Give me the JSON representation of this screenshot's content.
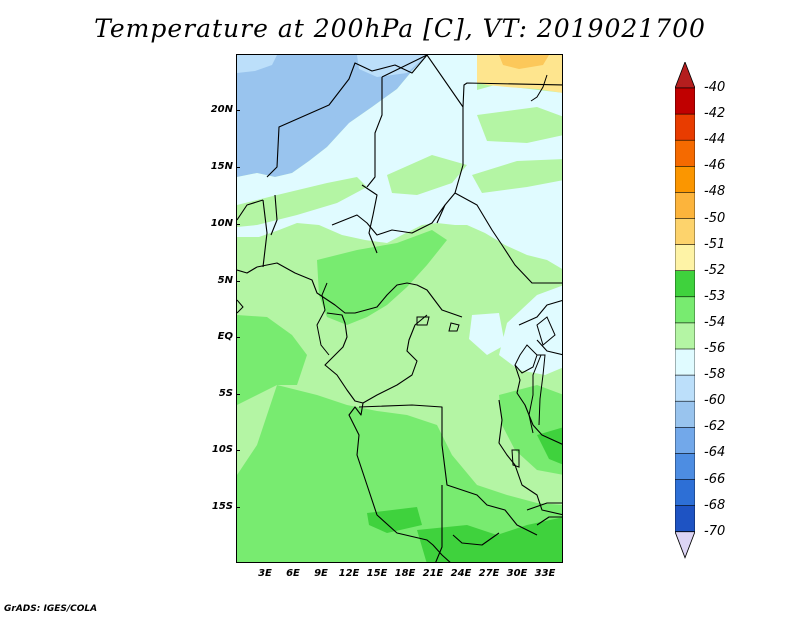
{
  "title": "Temperature at 200hPa [C], VT: 2019021700",
  "credit": "GrADS: IGES/COLA",
  "map": {
    "lat_labels": [
      "20N",
      "15N",
      "10N",
      "5N",
      "EQ",
      "5S",
      "10S",
      "15S"
    ],
    "lon_labels": [
      "3E",
      "6E",
      "9E",
      "12E",
      "15E",
      "18E",
      "21E",
      "24E",
      "27E",
      "30E",
      "33E"
    ],
    "colors": {
      "coldest_blue": "#99c4ee",
      "blue_56": "#bcdffa",
      "pale_cyan_54": "#e0fbff",
      "light_green_53": "#b4f5a4",
      "green_52": "#78eb70",
      "green_51": "#3fd23d",
      "yellow_50": "#fee58e",
      "orange_48": "#fcc85a",
      "border_line": "#000000"
    }
  },
  "chart_data": {
    "type": "heatmap",
    "title": "Temperature at 200hPa [C], VT: 2019021700",
    "variable": "Temperature",
    "level": "200hPa",
    "units": "C",
    "valid_time": "2019021700",
    "x_ticks": [
      "3E",
      "6E",
      "9E",
      "12E",
      "15E",
      "18E",
      "21E",
      "24E",
      "27E",
      "30E",
      "33E"
    ],
    "y_ticks": [
      "20N",
      "15N",
      "10N",
      "5N",
      "EQ",
      "5S",
      "10S",
      "15S"
    ],
    "xlim": [
      0,
      35
    ],
    "ylim": [
      -20,
      25
    ],
    "colorbar": {
      "labels": [
        "-40",
        "-42",
        "-44",
        "-46",
        "-48",
        "-50",
        "-51",
        "-52",
        "-53",
        "-54",
        "-56",
        "-58",
        "-60",
        "-62",
        "-64",
        "-66",
        "-68",
        "-70"
      ],
      "colors": [
        "#c00000",
        "#e83c00",
        "#f56a00",
        "#fb9600",
        "#fcb43c",
        "#fdd36c",
        "#fef3a6",
        "#3fd23d",
        "#78eb70",
        "#b4f5a4",
        "#e0fbff",
        "#bcdffa",
        "#99c4ee",
        "#72a8ea",
        "#4d8de2",
        "#2d6fd6",
        "#1e53c3",
        "#103aa6",
        "#08208a",
        "#06105e"
      ],
      "top_arrow_color": "#b41e1e",
      "bottom_arrow_color": "#dcd4f4"
    },
    "observations": [
      {
        "region": "far north-east corner (approx. 26-35E, 22-25N)",
        "range": "-50 to -48"
      },
      {
        "region": "north-west Sahara (approx. 0-15E, 14-25N)",
        "range": "-58 to -56"
      },
      {
        "region": "central/eastern Sahara and Sahel",
        "range": "-56 to -54"
      },
      {
        "region": "equatorial band and East Africa highlands",
        "range": "-54 to -53"
      },
      {
        "region": "Congo basin and southern Africa",
        "range": "-53 to -51"
      }
    ]
  }
}
